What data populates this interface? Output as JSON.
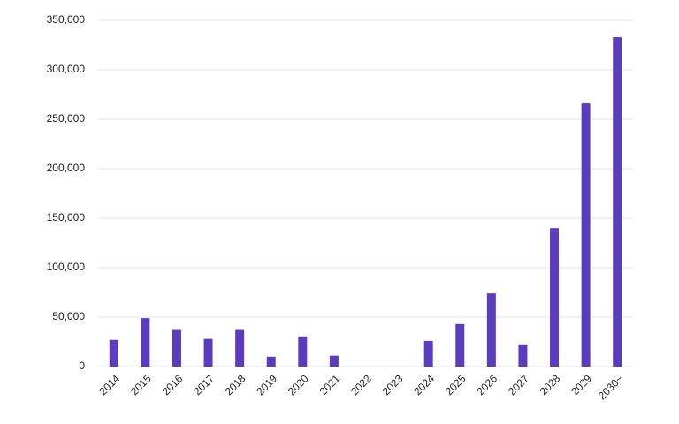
{
  "chart_data": {
    "type": "bar",
    "categories": [
      "2014",
      "2015",
      "2016",
      "2017",
      "2018",
      "2019",
      "2020",
      "2021",
      "2022",
      "2023",
      "2024",
      "2025",
      "2026",
      "2027",
      "2028",
      "2029",
      "2030~"
    ],
    "values": [
      27000,
      49000,
      37000,
      28000,
      37000,
      10000,
      30500,
      11000,
      0,
      0,
      26000,
      43000,
      74000,
      22500,
      140000,
      266000,
      333000
    ],
    "color": "#5b3cc0",
    "ylim": [
      0,
      350000
    ],
    "yticks": [
      0,
      {
        "value": 50000,
        "label": "50,000"
      },
      {
        "value": 100000,
        "label": "100,000"
      },
      {
        "value": 150000,
        "label": "150,000"
      },
      {
        "value": 200000,
        "label": "200,000"
      },
      {
        "value": 250000,
        "label": "250,000"
      },
      {
        "value": 300000,
        "label": "300,000"
      },
      {
        "value": 350000,
        "label": "350,000"
      }
    ],
    "grid": true
  }
}
